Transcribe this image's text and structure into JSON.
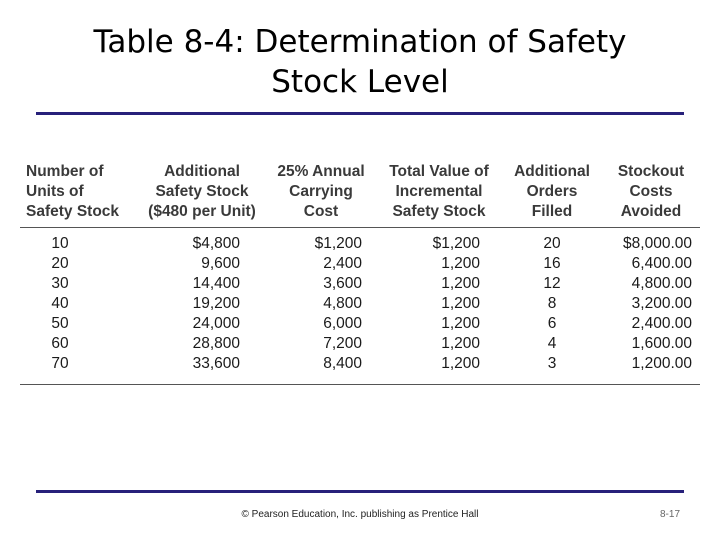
{
  "slide": {
    "title_line1": "Table 8-4:  Determination of Safety",
    "title_line2": "Stock Level",
    "rule_color": "#27207a"
  },
  "table": {
    "columns": [
      [
        "Number of",
        "Units of",
        "Safety Stock"
      ],
      [
        "Additional",
        "Safety Stock",
        "($480 per Unit)"
      ],
      [
        "25% Annual",
        "Carrying",
        "Cost"
      ],
      [
        "Total Value of",
        "Incremental",
        "Safety Stock"
      ],
      [
        "Additional",
        "Orders",
        "Filled"
      ],
      [
        "Stockout",
        "Costs",
        "Avoided"
      ]
    ],
    "rows": [
      [
        "10",
        "$4,800",
        "$1,200",
        "$1,200",
        "20",
        "$8,000.00"
      ],
      [
        "20",
        "9,600",
        "2,400",
        "1,200",
        "16",
        "6,400.00"
      ],
      [
        "30",
        "14,400",
        "3,600",
        "1,200",
        "12",
        "4,800.00"
      ],
      [
        "40",
        "19,200",
        "4,800",
        "1,200",
        "8",
        "3,200.00"
      ],
      [
        "50",
        "24,000",
        "6,000",
        "1,200",
        "6",
        "2,400.00"
      ],
      [
        "60",
        "28,800",
        "7,200",
        "1,200",
        "4",
        "1,600.00"
      ],
      [
        "70",
        "33,600",
        "8,400",
        "1,200",
        "3",
        "1,200.00"
      ]
    ]
  },
  "footer": {
    "copyright": "© Pearson Education, Inc. publishing as Prentice Hall",
    "slide_number": "8-17"
  }
}
